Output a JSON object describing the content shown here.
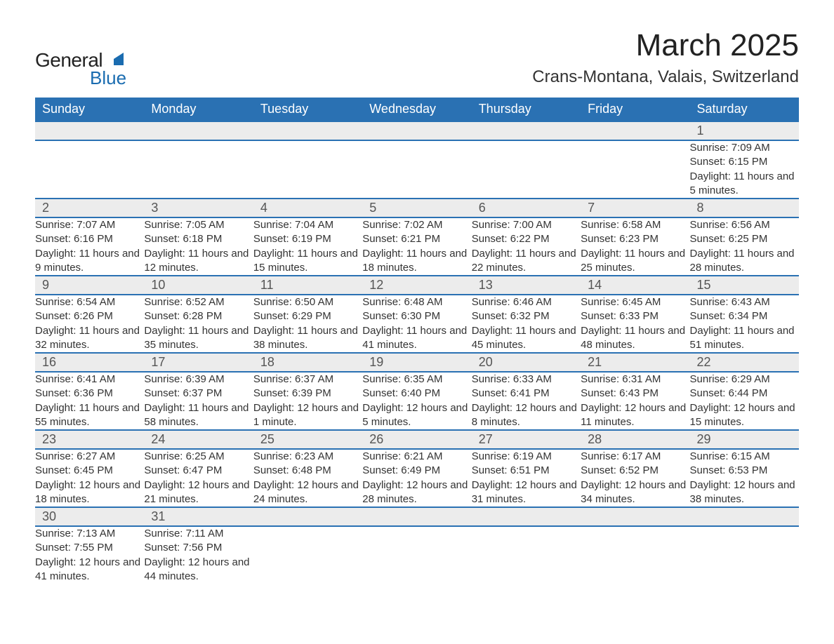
{
  "logo": {
    "word1": "General",
    "word2": "Blue",
    "accent_color": "#1a6cb0"
  },
  "title": "March 2025",
  "location": "Crans-Montana, Valais, Switzerland",
  "colors": {
    "header_bg": "#2a71b3",
    "header_fg": "#ffffff",
    "row_alt": "#ececec",
    "divider": "#2a71b3",
    "text": "#333333"
  },
  "day_headers": [
    "Sunday",
    "Monday",
    "Tuesday",
    "Wednesday",
    "Thursday",
    "Friday",
    "Saturday"
  ],
  "weeks": [
    [
      null,
      null,
      null,
      null,
      null,
      null,
      {
        "n": "1",
        "sunrise": "7:09 AM",
        "sunset": "6:15 PM",
        "daylight": "11 hours and 5 minutes."
      }
    ],
    [
      {
        "n": "2",
        "sunrise": "7:07 AM",
        "sunset": "6:16 PM",
        "daylight": "11 hours and 9 minutes."
      },
      {
        "n": "3",
        "sunrise": "7:05 AM",
        "sunset": "6:18 PM",
        "daylight": "11 hours and 12 minutes."
      },
      {
        "n": "4",
        "sunrise": "7:04 AM",
        "sunset": "6:19 PM",
        "daylight": "11 hours and 15 minutes."
      },
      {
        "n": "5",
        "sunrise": "7:02 AM",
        "sunset": "6:21 PM",
        "daylight": "11 hours and 18 minutes."
      },
      {
        "n": "6",
        "sunrise": "7:00 AM",
        "sunset": "6:22 PM",
        "daylight": "11 hours and 22 minutes."
      },
      {
        "n": "7",
        "sunrise": "6:58 AM",
        "sunset": "6:23 PM",
        "daylight": "11 hours and 25 minutes."
      },
      {
        "n": "8",
        "sunrise": "6:56 AM",
        "sunset": "6:25 PM",
        "daylight": "11 hours and 28 minutes."
      }
    ],
    [
      {
        "n": "9",
        "sunrise": "6:54 AM",
        "sunset": "6:26 PM",
        "daylight": "11 hours and 32 minutes."
      },
      {
        "n": "10",
        "sunrise": "6:52 AM",
        "sunset": "6:28 PM",
        "daylight": "11 hours and 35 minutes."
      },
      {
        "n": "11",
        "sunrise": "6:50 AM",
        "sunset": "6:29 PM",
        "daylight": "11 hours and 38 minutes."
      },
      {
        "n": "12",
        "sunrise": "6:48 AM",
        "sunset": "6:30 PM",
        "daylight": "11 hours and 41 minutes."
      },
      {
        "n": "13",
        "sunrise": "6:46 AM",
        "sunset": "6:32 PM",
        "daylight": "11 hours and 45 minutes."
      },
      {
        "n": "14",
        "sunrise": "6:45 AM",
        "sunset": "6:33 PM",
        "daylight": "11 hours and 48 minutes."
      },
      {
        "n": "15",
        "sunrise": "6:43 AM",
        "sunset": "6:34 PM",
        "daylight": "11 hours and 51 minutes."
      }
    ],
    [
      {
        "n": "16",
        "sunrise": "6:41 AM",
        "sunset": "6:36 PM",
        "daylight": "11 hours and 55 minutes."
      },
      {
        "n": "17",
        "sunrise": "6:39 AM",
        "sunset": "6:37 PM",
        "daylight": "11 hours and 58 minutes."
      },
      {
        "n": "18",
        "sunrise": "6:37 AM",
        "sunset": "6:39 PM",
        "daylight": "12 hours and 1 minute."
      },
      {
        "n": "19",
        "sunrise": "6:35 AM",
        "sunset": "6:40 PM",
        "daylight": "12 hours and 5 minutes."
      },
      {
        "n": "20",
        "sunrise": "6:33 AM",
        "sunset": "6:41 PM",
        "daylight": "12 hours and 8 minutes."
      },
      {
        "n": "21",
        "sunrise": "6:31 AM",
        "sunset": "6:43 PM",
        "daylight": "12 hours and 11 minutes."
      },
      {
        "n": "22",
        "sunrise": "6:29 AM",
        "sunset": "6:44 PM",
        "daylight": "12 hours and 15 minutes."
      }
    ],
    [
      {
        "n": "23",
        "sunrise": "6:27 AM",
        "sunset": "6:45 PM",
        "daylight": "12 hours and 18 minutes."
      },
      {
        "n": "24",
        "sunrise": "6:25 AM",
        "sunset": "6:47 PM",
        "daylight": "12 hours and 21 minutes."
      },
      {
        "n": "25",
        "sunrise": "6:23 AM",
        "sunset": "6:48 PM",
        "daylight": "12 hours and 24 minutes."
      },
      {
        "n": "26",
        "sunrise": "6:21 AM",
        "sunset": "6:49 PM",
        "daylight": "12 hours and 28 minutes."
      },
      {
        "n": "27",
        "sunrise": "6:19 AM",
        "sunset": "6:51 PM",
        "daylight": "12 hours and 31 minutes."
      },
      {
        "n": "28",
        "sunrise": "6:17 AM",
        "sunset": "6:52 PM",
        "daylight": "12 hours and 34 minutes."
      },
      {
        "n": "29",
        "sunrise": "6:15 AM",
        "sunset": "6:53 PM",
        "daylight": "12 hours and 38 minutes."
      }
    ],
    [
      {
        "n": "30",
        "sunrise": "7:13 AM",
        "sunset": "7:55 PM",
        "daylight": "12 hours and 41 minutes."
      },
      {
        "n": "31",
        "sunrise": "7:11 AM",
        "sunset": "7:56 PM",
        "daylight": "12 hours and 44 minutes."
      },
      null,
      null,
      null,
      null,
      null
    ]
  ],
  "labels": {
    "sunrise": "Sunrise: ",
    "sunset": "Sunset: ",
    "daylight": "Daylight: "
  }
}
